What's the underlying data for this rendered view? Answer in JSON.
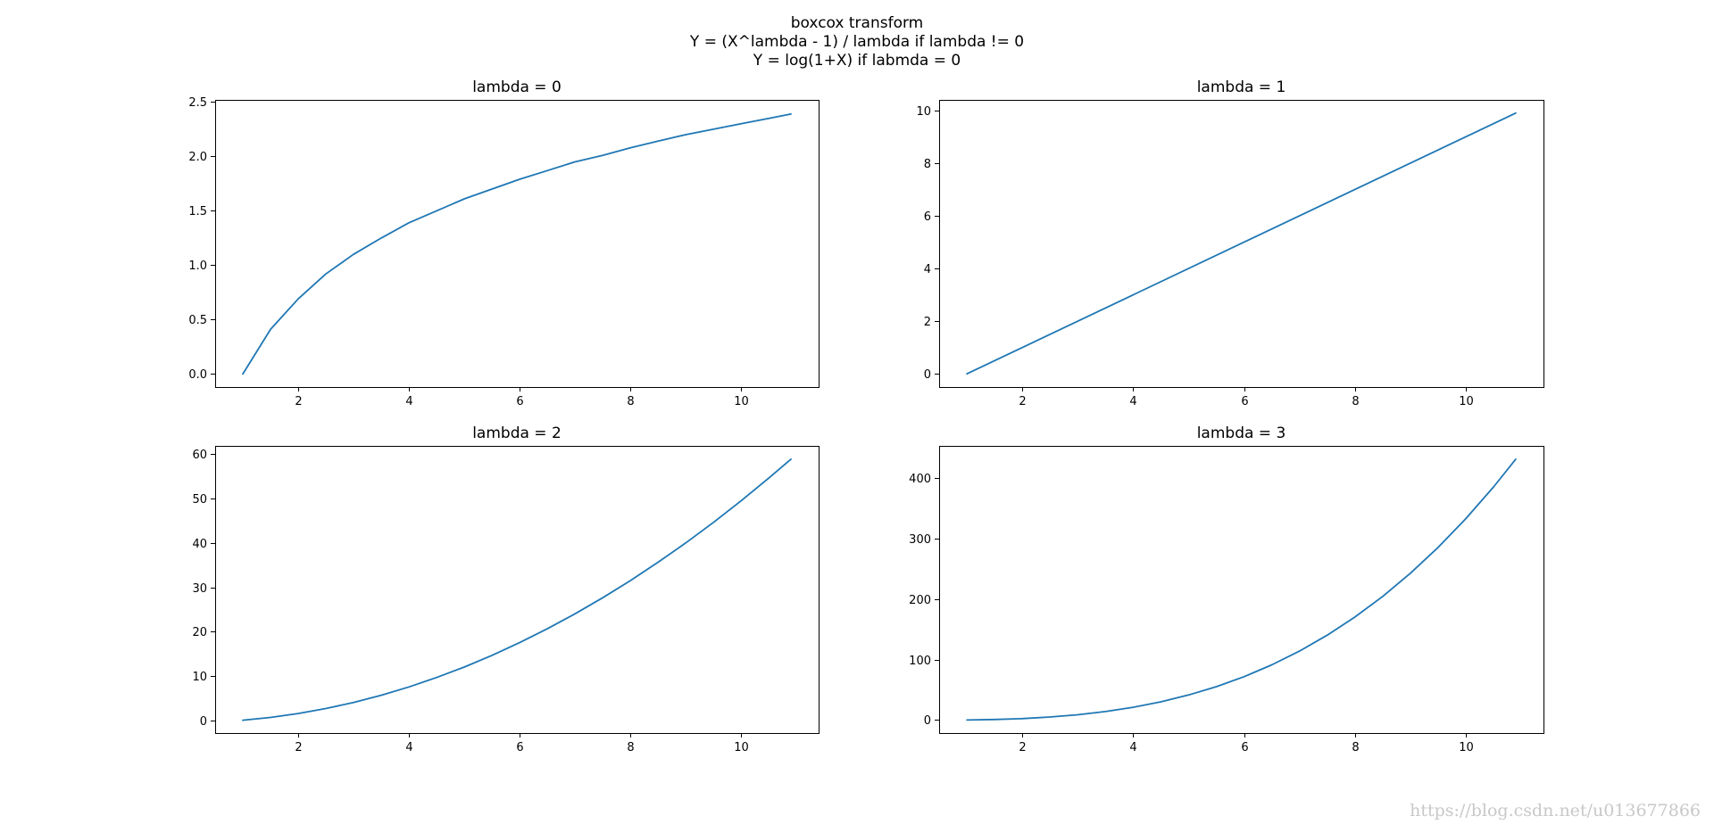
{
  "figure": {
    "title_lines": [
      "boxcox transform",
      "Y = (X^lambda - 1) / lambda if lambda != 0",
      "Y = log(1+X) if labmda = 0"
    ],
    "watermark": "https://blog.csdn.net/u013677866",
    "line_color": "#1f77b4"
  },
  "chart_data": [
    {
      "type": "line",
      "title": "lambda = 0",
      "xlabel": "",
      "ylabel": "",
      "xlim": [
        0.5,
        11.4
      ],
      "ylim": [
        -0.12,
        2.52
      ],
      "xticks": [
        2,
        4,
        6,
        8,
        10
      ],
      "yticks": [
        0.0,
        0.5,
        1.0,
        1.5,
        2.0,
        2.5
      ],
      "ytick_labels": [
        "0.0",
        "0.5",
        "1.0",
        "1.5",
        "2.0",
        "2.5"
      ],
      "grid": false,
      "series": [
        {
          "x": [
            1,
            1.5,
            2,
            2.5,
            3,
            3.5,
            4,
            4.5,
            5,
            5.5,
            6,
            6.5,
            7,
            7.5,
            8,
            8.5,
            9,
            9.5,
            10,
            10.5,
            10.9
          ],
          "y": [
            0,
            0.41,
            0.69,
            0.92,
            1.1,
            1.25,
            1.39,
            1.5,
            1.61,
            1.7,
            1.79,
            1.87,
            1.95,
            2.01,
            2.08,
            2.14,
            2.2,
            2.25,
            2.3,
            2.35,
            2.39
          ]
        }
      ]
    },
    {
      "type": "line",
      "title": "lambda = 1",
      "xlabel": "",
      "ylabel": "",
      "xlim": [
        0.5,
        11.4
      ],
      "ylim": [
        -0.5,
        10.4
      ],
      "xticks": [
        2,
        4,
        6,
        8,
        10
      ],
      "yticks": [
        0,
        2,
        4,
        6,
        8,
        10
      ],
      "ytick_labels": [
        "0",
        "2",
        "4",
        "6",
        "8",
        "10"
      ],
      "grid": false,
      "series": [
        {
          "x": [
            1,
            10.9
          ],
          "y": [
            0,
            9.9
          ]
        }
      ]
    },
    {
      "type": "line",
      "title": "lambda = 2",
      "xlabel": "",
      "ylabel": "",
      "xlim": [
        0.5,
        11.4
      ],
      "ylim": [
        -2.9,
        61.9
      ],
      "xticks": [
        2,
        4,
        6,
        8,
        10
      ],
      "yticks": [
        0,
        10,
        20,
        30,
        40,
        50,
        60
      ],
      "ytick_labels": [
        "0",
        "10",
        "20",
        "30",
        "40",
        "50",
        "60"
      ],
      "grid": false,
      "series": [
        {
          "x": [
            1,
            1.5,
            2,
            2.5,
            3,
            3.5,
            4,
            4.5,
            5,
            5.5,
            6,
            6.5,
            7,
            7.5,
            8,
            8.5,
            9,
            9.5,
            10,
            10.5,
            10.9
          ],
          "y": [
            0,
            0.63,
            1.5,
            2.63,
            4.0,
            5.63,
            7.5,
            9.63,
            12.0,
            14.63,
            17.5,
            20.63,
            24.0,
            27.63,
            31.5,
            35.63,
            40.0,
            44.63,
            49.5,
            54.63,
            58.9
          ]
        }
      ]
    },
    {
      "type": "line",
      "title": "lambda = 3",
      "xlabel": "",
      "ylabel": "",
      "xlim": [
        0.5,
        11.4
      ],
      "ylim": [
        -21.6,
        453.3
      ],
      "xticks": [
        2,
        4,
        6,
        8,
        10
      ],
      "yticks": [
        0,
        100,
        200,
        300,
        400
      ],
      "ytick_labels": [
        "0",
        "100",
        "200",
        "300",
        "400"
      ],
      "grid": false,
      "series": [
        {
          "x": [
            1,
            1.5,
            2,
            2.5,
            3,
            3.5,
            4,
            4.5,
            5,
            5.5,
            6,
            6.5,
            7,
            7.5,
            8,
            8.5,
            9,
            9.5,
            10,
            10.5,
            10.9
          ],
          "y": [
            0,
            0.79,
            2.33,
            4.88,
            8.67,
            13.96,
            21.0,
            30.04,
            41.33,
            55.13,
            71.67,
            91.21,
            114.0,
            140.3,
            170.3,
            204.4,
            242.7,
            285.5,
            333.0,
            385.5,
            431.3
          ]
        }
      ]
    }
  ]
}
